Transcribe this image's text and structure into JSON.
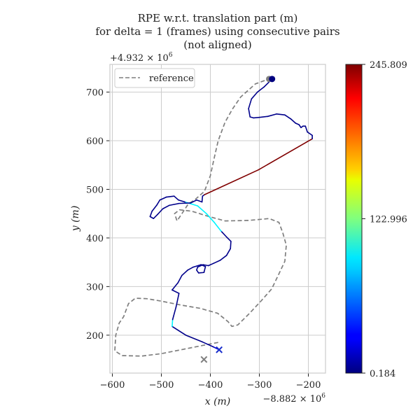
{
  "chart_data": {
    "type": "line",
    "title": [
      "RPE w.r.t. translation part (m)",
      "for delta = 1 (frames) using consecutive pairs",
      "(not aligned)"
    ],
    "xlabel": "x (m)",
    "ylabel": "y (m)",
    "x_offset_label": "−8.882 × 10",
    "x_offset_exp": "6",
    "y_offset_label": "+4.932 × 10",
    "y_offset_exp": "6",
    "xlim": [
      -605,
      -165
    ],
    "ylim": [
      122,
      757
    ],
    "x_ticks": [
      -600,
      -500,
      -400,
      -300,
      -200
    ],
    "x_tick_labels": [
      "−600",
      "−500",
      "−400",
      "−300",
      "−200"
    ],
    "y_ticks": [
      200,
      300,
      400,
      500,
      600,
      700
    ],
    "y_tick_labels": [
      "200",
      "300",
      "400",
      "500",
      "600",
      "700"
    ],
    "grid": true,
    "legend_position": "top-left",
    "legend": [
      "reference"
    ],
    "series": [
      {
        "name": "reference",
        "style": "dashed",
        "color": "#7f7f7f",
        "points": [
          [
            -384,
            185
          ],
          [
            -420,
            178
          ],
          [
            -460,
            170
          ],
          [
            -500,
            162
          ],
          [
            -540,
            157
          ],
          [
            -580,
            158
          ],
          [
            -595,
            168
          ],
          [
            -593,
            200
          ],
          [
            -586,
            225
          ],
          [
            -577,
            238
          ],
          [
            -567,
            265
          ],
          [
            -553,
            276
          ],
          [
            -530,
            275
          ],
          [
            -500,
            270
          ],
          [
            -460,
            262
          ],
          [
            -420,
            255
          ],
          [
            -385,
            245
          ],
          [
            -364,
            228
          ],
          [
            -356,
            218
          ],
          [
            -344,
            221
          ],
          [
            -320,
            245
          ],
          [
            -295,
            272
          ],
          [
            -275,
            295
          ],
          [
            -262,
            322
          ],
          [
            -248,
            352
          ],
          [
            -245,
            385
          ],
          [
            -252,
            410
          ],
          [
            -260,
            432
          ],
          [
            -280,
            440
          ],
          [
            -322,
            436
          ],
          [
            -370,
            435
          ],
          [
            -406,
            445
          ],
          [
            -438,
            455
          ],
          [
            -463,
            458
          ],
          [
            -473,
            450
          ],
          [
            -468,
            435
          ],
          [
            -458,
            450
          ],
          [
            -445,
            470
          ],
          [
            -430,
            480
          ],
          [
            -412,
            496
          ],
          [
            -400,
            528
          ],
          [
            -392,
            565
          ],
          [
            -384,
            600
          ],
          [
            -370,
            638
          ],
          [
            -355,
            665
          ],
          [
            -338,
            690
          ],
          [
            -308,
            717
          ],
          [
            -280,
            727
          ]
        ],
        "start_marker": [
          -280,
          727
        ],
        "end_marker": [
          -413,
          150
        ]
      },
      {
        "name": "",
        "style": "solid",
        "colormap": "jet",
        "points": [
          [
            -382,
            170
          ],
          [
            -394,
            176
          ],
          [
            -416,
            186
          ],
          [
            -450,
            200
          ],
          [
            -478,
            218
          ],
          [
            -477,
            232
          ],
          [
            -470,
            258
          ],
          [
            -464,
            286
          ],
          [
            -478,
            293
          ],
          [
            -466,
            308
          ],
          [
            -458,
            323
          ],
          [
            -446,
            334
          ],
          [
            -435,
            340
          ],
          [
            -419,
            345
          ],
          [
            -410,
            341
          ],
          [
            -413,
            329
          ],
          [
            -424,
            328
          ],
          [
            -428,
            334
          ],
          [
            -426,
            340
          ],
          [
            -415,
            345
          ],
          [
            -404,
            343
          ],
          [
            -393,
            348
          ],
          [
            -380,
            354
          ],
          [
            -367,
            364
          ],
          [
            -359,
            378
          ],
          [
            -358,
            393
          ],
          [
            -366,
            401
          ],
          [
            -378,
            414
          ],
          [
            -392,
            432
          ],
          [
            -408,
            450
          ],
          [
            -426,
            466
          ],
          [
            -442,
            471
          ],
          [
            -452,
            474
          ],
          [
            -465,
            478
          ],
          [
            -474,
            486
          ],
          [
            -490,
            484
          ],
          [
            -503,
            478
          ],
          [
            -509,
            468
          ],
          [
            -519,
            455
          ],
          [
            -523,
            444
          ],
          [
            -516,
            440
          ],
          [
            -508,
            448
          ],
          [
            -497,
            460
          ],
          [
            -484,
            467
          ],
          [
            -464,
            471
          ],
          [
            -440,
            472
          ],
          [
            -428,
            478
          ],
          [
            -417,
            474
          ],
          [
            -416,
            486
          ],
          [
            -412,
            489
          ],
          [
            -302,
            540
          ],
          [
            -192,
            604
          ],
          [
            -192,
            611
          ],
          [
            -202,
            618
          ],
          [
            -206,
            630
          ],
          [
            -211,
            630
          ],
          [
            -215,
            627
          ],
          [
            -219,
            633
          ],
          [
            -226,
            636
          ],
          [
            -236,
            645
          ],
          [
            -248,
            653
          ],
          [
            -265,
            655
          ],
          [
            -283,
            650
          ],
          [
            -300,
            648
          ],
          [
            -312,
            647
          ],
          [
            -319,
            649
          ],
          [
            -322,
            666
          ],
          [
            -316,
            686
          ],
          [
            -304,
            700
          ],
          [
            -290,
            711
          ],
          [
            -274,
            727
          ]
        ],
        "segment_errors": [
          20,
          5,
          2,
          3,
          90,
          3,
          3,
          3,
          3,
          3,
          3,
          3,
          5,
          3,
          3,
          3,
          3,
          3,
          3,
          3,
          3,
          3,
          3,
          3,
          3,
          3,
          3,
          90,
          90,
          90,
          90,
          90,
          3,
          3,
          3,
          3,
          3,
          3,
          3,
          3,
          3,
          3,
          3,
          3,
          3,
          3,
          3,
          3,
          3,
          245.809,
          245.809,
          3,
          3,
          3,
          3,
          3,
          3,
          3,
          3,
          3,
          3,
          3,
          3,
          3,
          3,
          3,
          3,
          3,
          3,
          3
        ],
        "start_marker": [
          -274,
          727
        ],
        "end_marker": [
          -382,
          170
        ]
      }
    ],
    "colorbar": {
      "colormap": "jet",
      "min": 0.184,
      "max": 245.809,
      "tick_values": [
        0.184,
        122.996,
        245.809
      ],
      "tick_labels": [
        "0.184",
        "122.996",
        "245.809"
      ]
    }
  }
}
